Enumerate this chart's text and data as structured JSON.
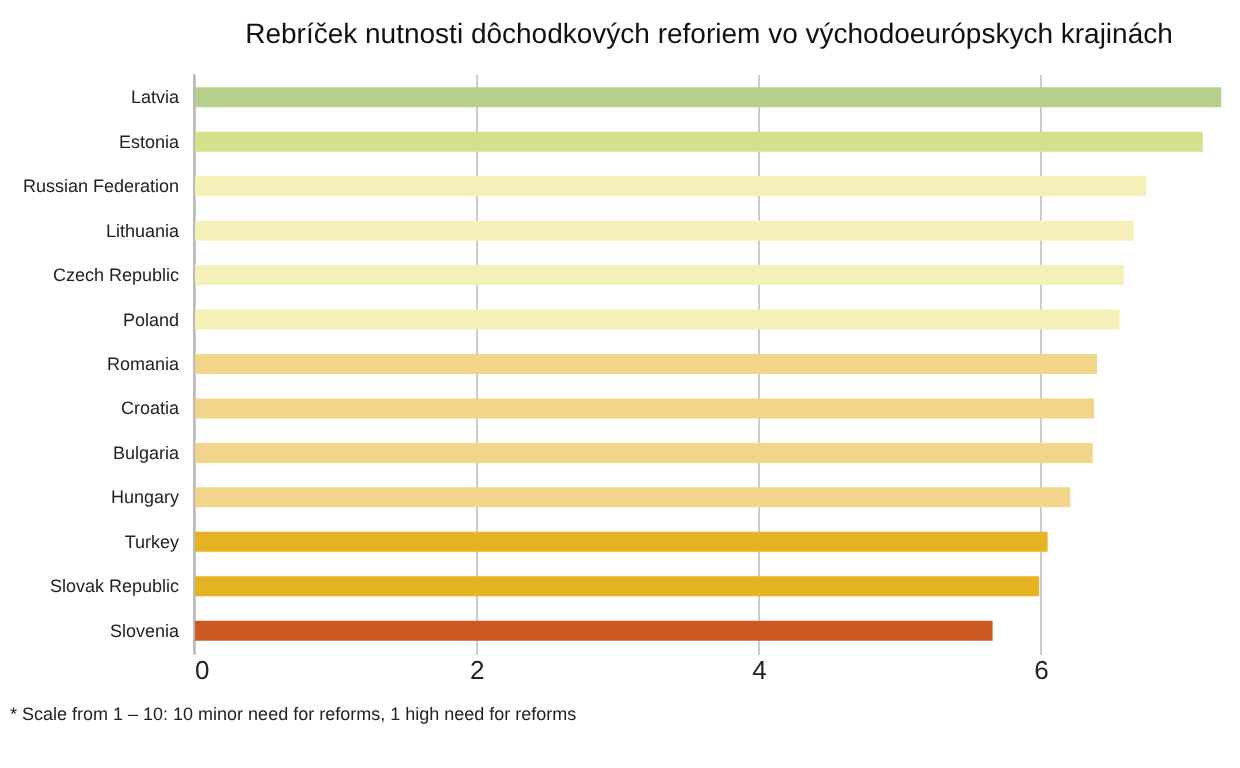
{
  "chart_data": {
    "type": "bar",
    "orientation": "horizontal",
    "title": "Rebríček nutnosti dôchodkových reforiem vo východoeurópskych krajinách",
    "categories": [
      "Latvia",
      "Estonia",
      "Russian Federation",
      "Lithuania",
      "Czech Republic",
      "Poland",
      "Romania",
      "Croatia",
      "Bulgaria",
      "Hungary",
      "Turkey",
      "Slovak Republic",
      "Slovenia"
    ],
    "values": [
      7.28,
      7.15,
      6.75,
      6.66,
      6.59,
      6.56,
      6.4,
      6.38,
      6.37,
      6.21,
      6.05,
      5.99,
      5.66
    ],
    "colors": [
      "#b5d08a",
      "#d6e08a",
      "#f5f0b8",
      "#f5f0b8",
      "#f5f0b8",
      "#f5f0b8",
      "#f2d48a",
      "#f2d48a",
      "#f2d48a",
      "#f2d48a",
      "#e6b422",
      "#e6b422",
      "#cc5a20"
    ],
    "xlim": [
      0,
      7.3
    ],
    "xticks": [
      0,
      2,
      4,
      6
    ],
    "grid": "x",
    "annotations": [
      "* Scale from 1 – 10: 10 minor need for reforms, 1 high need for reforms"
    ]
  }
}
